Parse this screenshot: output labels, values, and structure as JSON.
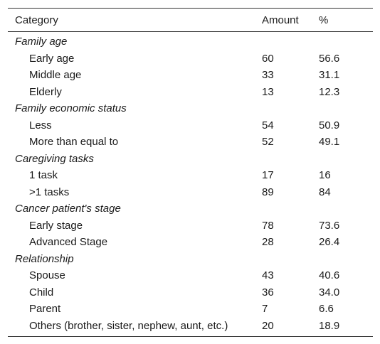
{
  "table": {
    "headers": {
      "category": "Category",
      "amount": "Amount",
      "percent": "%"
    },
    "groups": [
      {
        "title": "Family age",
        "rows": [
          {
            "label": "Early age",
            "amount": "60",
            "percent": "56.6"
          },
          {
            "label": "Middle age",
            "amount": "33",
            "percent": "31.1"
          },
          {
            "label": "Elderly",
            "amount": "13",
            "percent": "12.3"
          }
        ]
      },
      {
        "title": "Family economic status",
        "rows": [
          {
            "label": "Less",
            "amount": "54",
            "percent": "50.9"
          },
          {
            "label": "More than equal to",
            "amount": "52",
            "percent": "49.1"
          }
        ]
      },
      {
        "title": "Caregiving tasks",
        "rows": [
          {
            "label": "1 task",
            "amount": "17",
            "percent": "16"
          },
          {
            "label": ">1 tasks",
            "amount": "89",
            "percent": "84"
          }
        ]
      },
      {
        "title": "Cancer patient's stage",
        "rows": [
          {
            "label": "Early stage",
            "amount": "78",
            "percent": "73.6"
          },
          {
            "label": "Advanced Stage",
            "amount": "28",
            "percent": "26.4"
          }
        ]
      },
      {
        "title": "Relationship",
        "rows": [
          {
            "label": "Spouse",
            "amount": "43",
            "percent": "40.6"
          },
          {
            "label": "Child",
            "amount": "36",
            "percent": "34.0"
          },
          {
            "label": "Parent",
            "amount": "7",
            "percent": "6.6"
          },
          {
            "label": "Others (brother, sister, nephew, aunt, etc.)",
            "amount": "20",
            "percent": "18.9"
          }
        ]
      }
    ]
  }
}
